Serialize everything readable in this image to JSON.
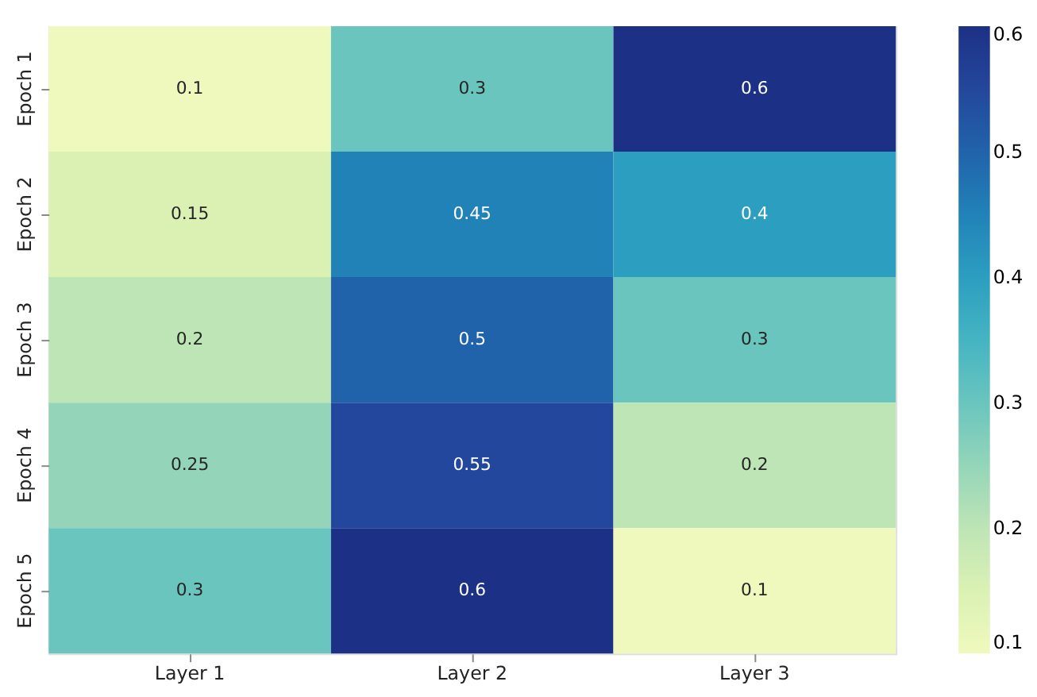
{
  "chart_data": {
    "type": "heatmap",
    "categories": [
      "Layer 1",
      "Layer 2",
      "Layer 3"
    ],
    "y_categories": [
      "Epoch 1",
      "Epoch 2",
      "Epoch 3",
      "Epoch 4",
      "Epoch 5"
    ],
    "cells": [
      [
        0.1,
        0.3,
        0.6
      ],
      [
        0.15,
        0.45,
        0.4
      ],
      [
        0.2,
        0.5,
        0.3
      ],
      [
        0.25,
        0.55,
        0.2
      ],
      [
        0.3,
        0.6,
        0.1
      ]
    ],
    "clim": [
      0.1,
      0.6
    ],
    "cticks": [
      0.1,
      0.2,
      0.3,
      0.4,
      0.5,
      0.6
    ],
    "data_labels": true
  }
}
